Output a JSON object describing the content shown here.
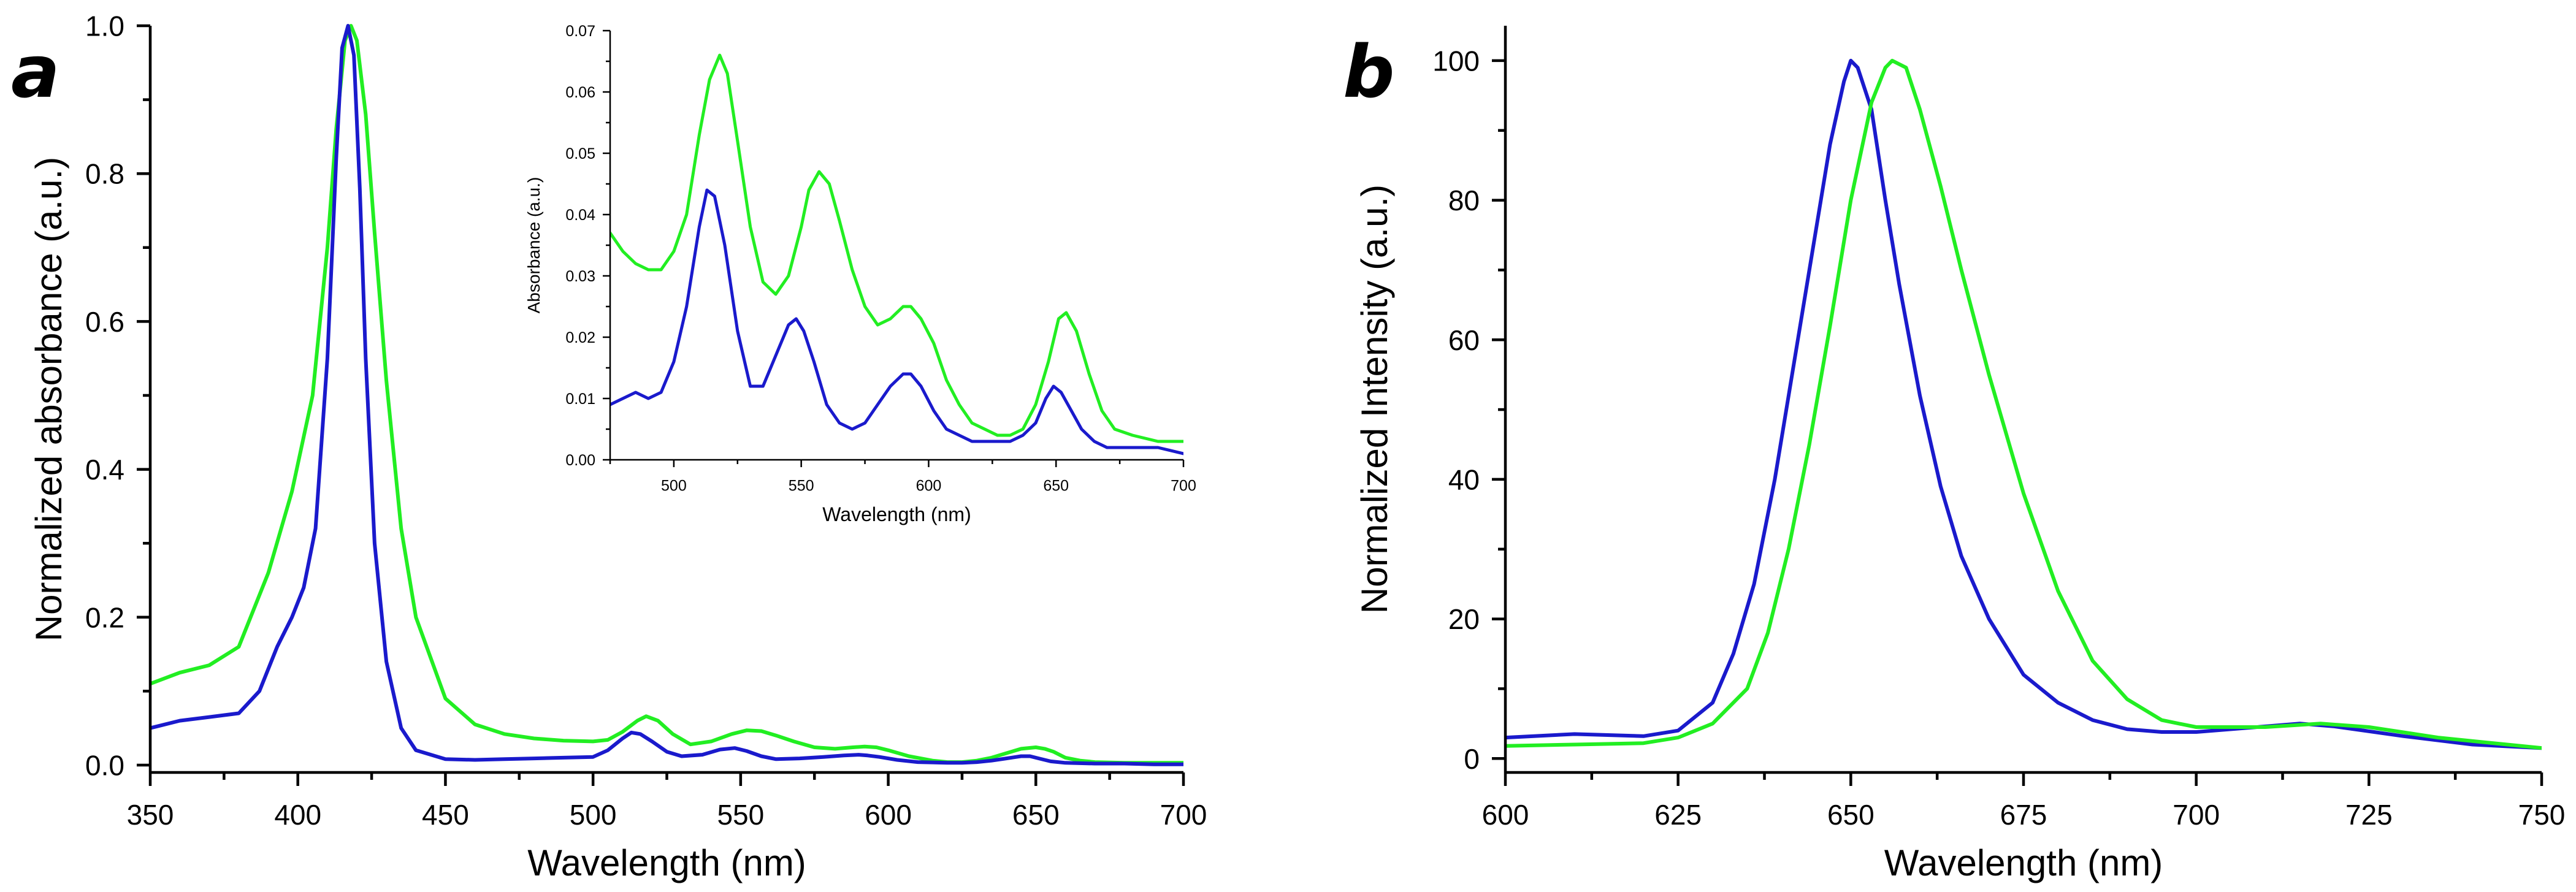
{
  "colors": {
    "green": "#22ee22",
    "blue": "#1a1acc",
    "axis": "#000000"
  },
  "chart_data": [
    {
      "panel": "a",
      "type": "line",
      "title": "",
      "xlabel": "Wavelength (nm)",
      "ylabel": "Normalized absorbance (a.u.)",
      "xlim": [
        350,
        700
      ],
      "ylim": [
        -0.01,
        1.0
      ],
      "xticks": [
        350,
        400,
        450,
        500,
        550,
        600,
        650,
        700
      ],
      "xtick_labels": [
        "350",
        "400",
        "450",
        "500",
        "550",
        "600",
        "650",
        "700"
      ],
      "yticks": [
        0.0,
        0.2,
        0.4,
        0.6,
        0.8,
        1.0
      ],
      "ytick_labels": [
        "0.0",
        "0.2",
        "0.4",
        "0.6",
        "0.8",
        "1.0"
      ],
      "grid": false,
      "series": [
        {
          "name": "green",
          "color": "#22ee22",
          "x": [
            350,
            360,
            370,
            380,
            390,
            398,
            405,
            410,
            413,
            416,
            418,
            420,
            423,
            426,
            430,
            435,
            440,
            450,
            460,
            470,
            480,
            490,
            500,
            505,
            510,
            515,
            518,
            522,
            527,
            533,
            540,
            547,
            552,
            557,
            562,
            568,
            575,
            582,
            588,
            592,
            596,
            600,
            607,
            615,
            620,
            625,
            630,
            635,
            640,
            645,
            650,
            653,
            656,
            660,
            665,
            670,
            680,
            690,
            700
          ],
          "y": [
            0.11,
            0.125,
            0.135,
            0.16,
            0.26,
            0.37,
            0.5,
            0.7,
            0.86,
            0.98,
            1.0,
            0.98,
            0.88,
            0.72,
            0.52,
            0.32,
            0.2,
            0.09,
            0.055,
            0.042,
            0.036,
            0.033,
            0.032,
            0.034,
            0.045,
            0.06,
            0.066,
            0.06,
            0.042,
            0.028,
            0.032,
            0.042,
            0.047,
            0.046,
            0.04,
            0.032,
            0.024,
            0.022,
            0.024,
            0.025,
            0.024,
            0.02,
            0.012,
            0.006,
            0.004,
            0.004,
            0.006,
            0.01,
            0.016,
            0.022,
            0.024,
            0.022,
            0.018,
            0.01,
            0.006,
            0.004,
            0.003,
            0.003,
            0.003
          ]
        },
        {
          "name": "blue",
          "color": "#1a1acc",
          "x": [
            350,
            360,
            370,
            380,
            387,
            393,
            398,
            402,
            406,
            410,
            413,
            415,
            417,
            419,
            421,
            423,
            426,
            430,
            435,
            440,
            450,
            460,
            470,
            480,
            490,
            500,
            505,
            510,
            513,
            516,
            520,
            525,
            530,
            537,
            543,
            548,
            552,
            557,
            562,
            570,
            578,
            585,
            590,
            593,
            597,
            603,
            610,
            620,
            625,
            630,
            635,
            640,
            645,
            648,
            651,
            655,
            660,
            670,
            680,
            690,
            700
          ],
          "y": [
            0.05,
            0.06,
            0.065,
            0.07,
            0.1,
            0.16,
            0.2,
            0.24,
            0.32,
            0.55,
            0.82,
            0.97,
            1.0,
            0.96,
            0.78,
            0.55,
            0.3,
            0.14,
            0.05,
            0.02,
            0.008,
            0.007,
            0.008,
            0.009,
            0.01,
            0.011,
            0.02,
            0.036,
            0.044,
            0.042,
            0.032,
            0.018,
            0.012,
            0.014,
            0.021,
            0.023,
            0.019,
            0.012,
            0.008,
            0.009,
            0.011,
            0.013,
            0.014,
            0.013,
            0.011,
            0.007,
            0.004,
            0.003,
            0.003,
            0.004,
            0.006,
            0.009,
            0.012,
            0.012,
            0.009,
            0.005,
            0.003,
            0.002,
            0.002,
            0.001,
            0.001
          ]
        }
      ]
    },
    {
      "panel": "a-inset",
      "type": "line",
      "title": "",
      "xlabel": "Wavelength (nm)",
      "ylabel": "Absorbance (a.u.)",
      "xlim": [
        475,
        700
      ],
      "ylim": [
        0.0,
        0.07
      ],
      "xticks": [
        500,
        550,
        600,
        650,
        700
      ],
      "xtick_labels": [
        "500",
        "550",
        "600",
        "650",
        "700"
      ],
      "yticks": [
        0.0,
        0.01,
        0.02,
        0.03,
        0.04,
        0.05,
        0.06,
        0.07
      ],
      "ytick_labels": [
        "0.00",
        "0.01",
        "0.02",
        "0.03",
        "0.04",
        "0.05",
        "0.06",
        "0.07"
      ],
      "grid": false,
      "series": [
        {
          "name": "green",
          "color": "#22ee22",
          "x": [
            475,
            480,
            485,
            490,
            495,
            500,
            505,
            510,
            514,
            518,
            521,
            525,
            530,
            535,
            540,
            545,
            550,
            553,
            557,
            561,
            565,
            570,
            575,
            580,
            585,
            590,
            593,
            597,
            602,
            607,
            612,
            617,
            622,
            627,
            632,
            637,
            642,
            647,
            651,
            654,
            658,
            663,
            668,
            673,
            680,
            690,
            700
          ],
          "y": [
            0.037,
            0.034,
            0.032,
            0.031,
            0.031,
            0.034,
            0.04,
            0.053,
            0.062,
            0.066,
            0.063,
            0.052,
            0.038,
            0.029,
            0.027,
            0.03,
            0.038,
            0.044,
            0.047,
            0.045,
            0.039,
            0.031,
            0.025,
            0.022,
            0.023,
            0.025,
            0.025,
            0.023,
            0.019,
            0.013,
            0.009,
            0.006,
            0.005,
            0.004,
            0.004,
            0.005,
            0.009,
            0.016,
            0.023,
            0.024,
            0.021,
            0.014,
            0.008,
            0.005,
            0.004,
            0.003,
            0.003
          ]
        },
        {
          "name": "blue",
          "color": "#1a1acc",
          "x": [
            475,
            480,
            485,
            490,
            495,
            500,
            505,
            510,
            513,
            516,
            520,
            525,
            530,
            535,
            540,
            545,
            548,
            551,
            555,
            560,
            565,
            570,
            575,
            580,
            585,
            590,
            593,
            597,
            602,
            607,
            612,
            617,
            622,
            627,
            632,
            637,
            642,
            646,
            649,
            652,
            656,
            660,
            665,
            670,
            680,
            690,
            700
          ],
          "y": [
            0.009,
            0.01,
            0.011,
            0.01,
            0.011,
            0.016,
            0.025,
            0.038,
            0.044,
            0.043,
            0.035,
            0.021,
            0.012,
            0.012,
            0.017,
            0.022,
            0.023,
            0.021,
            0.016,
            0.009,
            0.006,
            0.005,
            0.006,
            0.009,
            0.012,
            0.014,
            0.014,
            0.012,
            0.008,
            0.005,
            0.004,
            0.003,
            0.003,
            0.003,
            0.003,
            0.004,
            0.006,
            0.01,
            0.012,
            0.011,
            0.008,
            0.005,
            0.003,
            0.002,
            0.002,
            0.002,
            0.001
          ]
        }
      ]
    },
    {
      "panel": "b",
      "type": "line",
      "title": "",
      "xlabel": "Wavelength (nm)",
      "ylabel": "Normalized Intensity (a.u.)",
      "xlim": [
        600,
        750
      ],
      "ylim": [
        -2,
        105
      ],
      "xticks": [
        600,
        625,
        650,
        675,
        700,
        725,
        750
      ],
      "xtick_labels": [
        "600",
        "625",
        "650",
        "675",
        "700",
        "725",
        "750"
      ],
      "yticks": [
        0,
        20,
        40,
        60,
        80,
        100
      ],
      "ytick_labels": [
        "0",
        "20",
        "40",
        "60",
        "80",
        "100"
      ],
      "grid": false,
      "series": [
        {
          "name": "blue",
          "color": "#1a1acc",
          "x": [
            600,
            610,
            620,
            625,
            630,
            633,
            636,
            639,
            642,
            645,
            647,
            649,
            650,
            651,
            653,
            655,
            657,
            660,
            663,
            666,
            670,
            675,
            680,
            685,
            690,
            695,
            700,
            710,
            715,
            720,
            730,
            740,
            750
          ],
          "y": [
            3,
            3.5,
            3.2,
            4,
            8,
            15,
            25,
            40,
            58,
            76,
            88,
            97,
            100,
            99,
            93,
            80,
            68,
            52,
            39,
            29,
            20,
            12,
            8,
            5.5,
            4.2,
            3.8,
            3.8,
            4.6,
            5,
            4.6,
            3.2,
            2,
            1.5
          ]
        },
        {
          "name": "green",
          "color": "#22ee22",
          "x": [
            600,
            610,
            620,
            625,
            630,
            635,
            638,
            641,
            644,
            647,
            650,
            653,
            655,
            656,
            658,
            660,
            663,
            666,
            670,
            675,
            680,
            685,
            690,
            695,
            700,
            710,
            718,
            725,
            735,
            745,
            750
          ],
          "y": [
            1.8,
            2,
            2.2,
            3,
            5,
            10,
            18,
            30,
            45,
            62,
            80,
            94,
            99,
            100,
            99,
            93,
            82,
            70,
            55,
            38,
            24,
            14,
            8.5,
            5.5,
            4.5,
            4.5,
            5,
            4.5,
            3,
            2,
            1.5
          ]
        }
      ]
    }
  ],
  "panels": {
    "a": {
      "letter": "a"
    },
    "b": {
      "letter": "b"
    }
  }
}
